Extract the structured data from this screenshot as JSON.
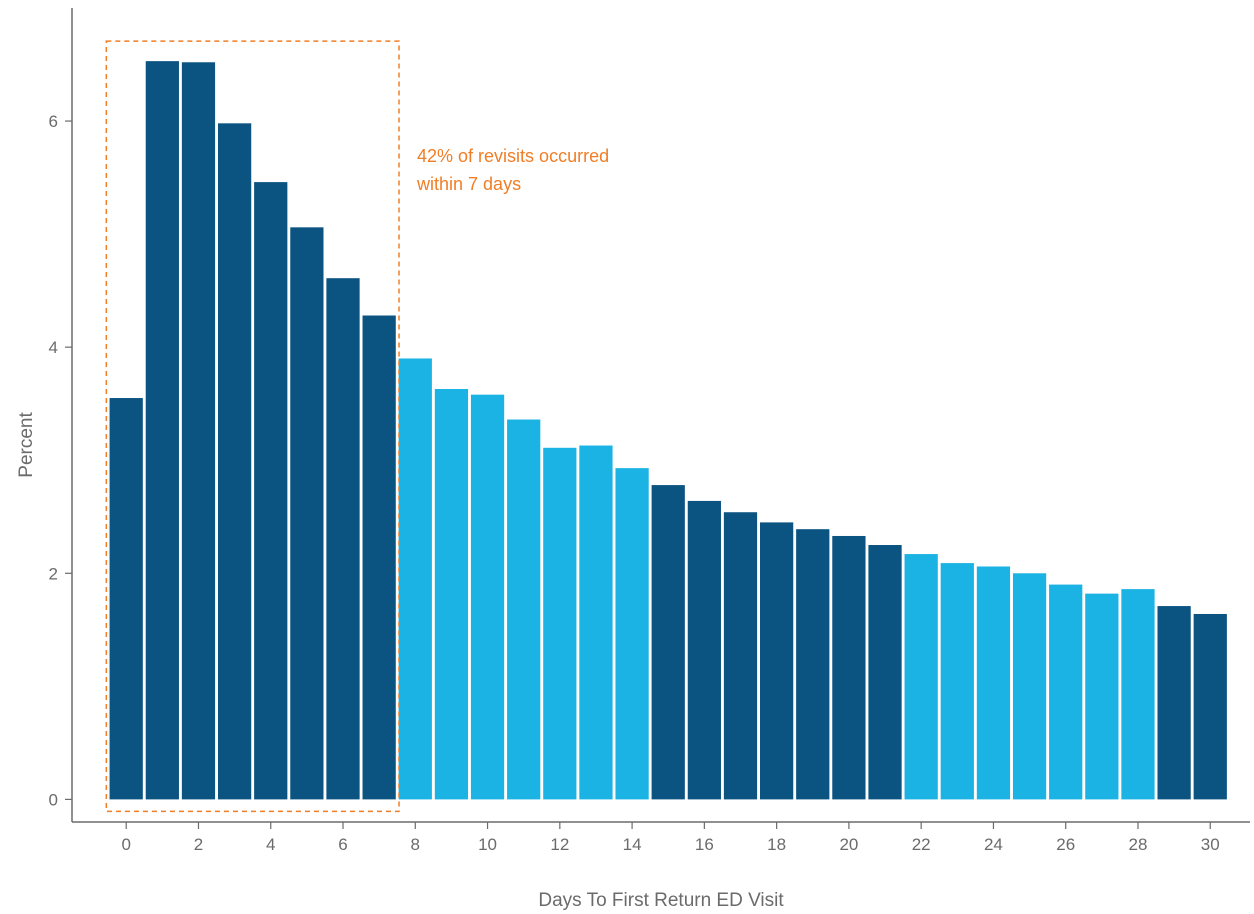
{
  "chart_data": {
    "type": "bar",
    "title": "",
    "xlabel": "Days To First Return ED Visit",
    "ylabel": "Percent",
    "categories": [
      0,
      1,
      2,
      3,
      4,
      5,
      6,
      7,
      8,
      9,
      10,
      11,
      12,
      13,
      14,
      15,
      16,
      17,
      18,
      19,
      20,
      21,
      22,
      23,
      24,
      25,
      26,
      27,
      28,
      29,
      30
    ],
    "values": [
      3.55,
      6.53,
      6.52,
      5.98,
      5.46,
      5.06,
      4.61,
      4.28,
      3.9,
      3.63,
      3.58,
      3.36,
      3.11,
      3.13,
      2.93,
      2.78,
      2.64,
      2.54,
      2.45,
      2.39,
      2.33,
      2.25,
      2.17,
      2.09,
      2.06,
      2.0,
      1.9,
      1.82,
      1.86,
      1.71,
      1.64
    ],
    "bar_color_groups": [
      0,
      0,
      0,
      0,
      0,
      0,
      0,
      0,
      1,
      1,
      1,
      1,
      1,
      1,
      1,
      0,
      0,
      0,
      0,
      0,
      0,
      0,
      1,
      1,
      1,
      1,
      1,
      1,
      1,
      0,
      0
    ],
    "colors": {
      "dark": "#0b5381",
      "light": "#1ab3e3",
      "highlight": "#f07e26",
      "axis": "#6b6b6b"
    },
    "xticks": [
      0,
      2,
      4,
      6,
      8,
      10,
      12,
      14,
      16,
      18,
      20,
      22,
      24,
      26,
      28,
      30
    ],
    "yticks": [
      0,
      2,
      4,
      6
    ],
    "ylim": [
      -0.2,
      7.0
    ],
    "xlim": [
      -1.5,
      31.1
    ],
    "grid": false,
    "highlight_range": [
      0,
      7
    ],
    "annotation": {
      "line1": "42% of revisits occurred",
      "line2": "within 7 days"
    }
  }
}
